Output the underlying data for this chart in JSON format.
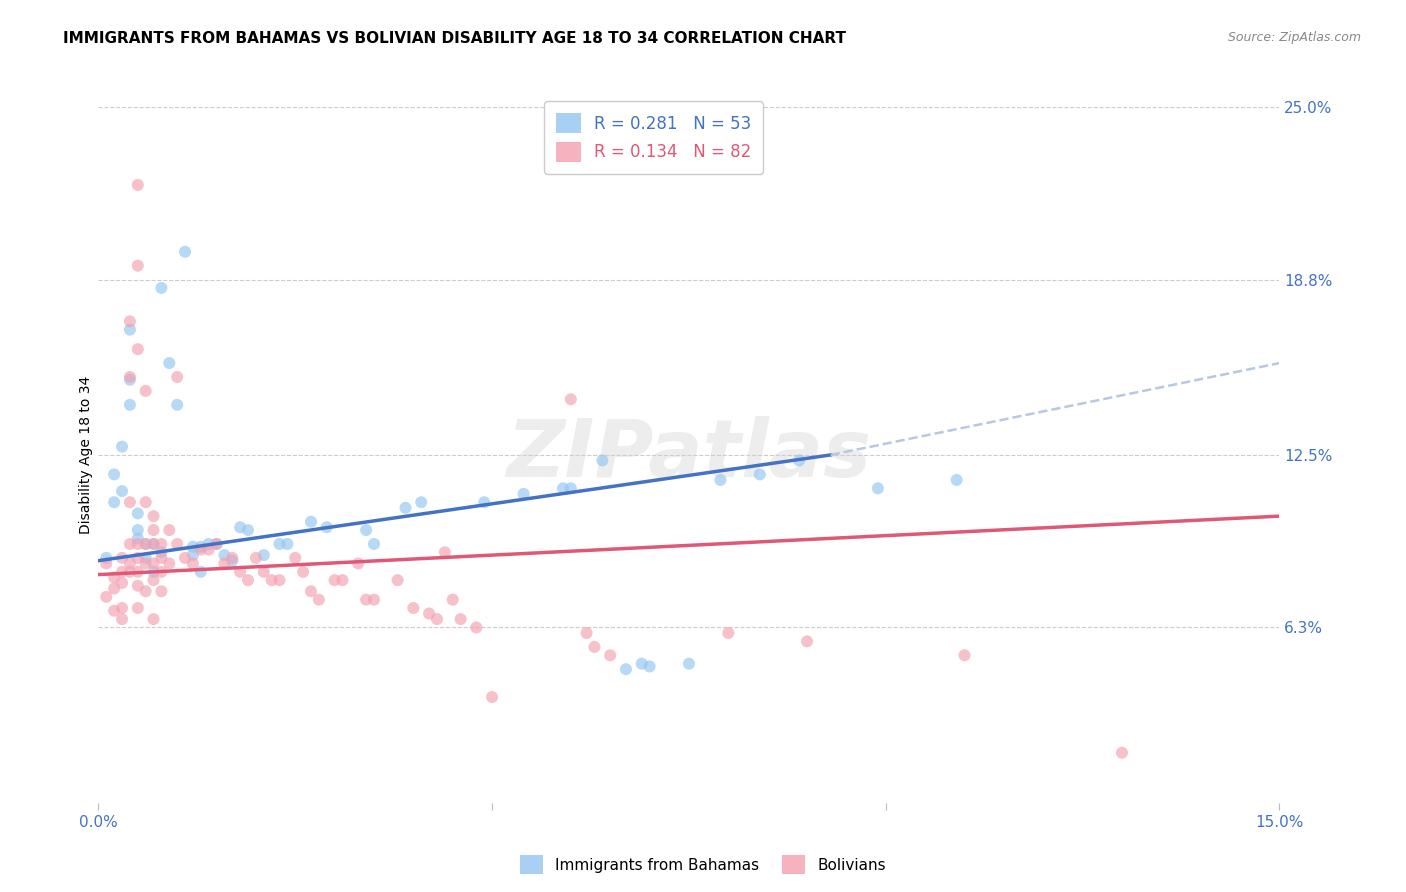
{
  "title": "IMMIGRANTS FROM BAHAMAS VS BOLIVIAN DISABILITY AGE 18 TO 34 CORRELATION CHART",
  "source": "Source: ZipAtlas.com",
  "ylabel_label": "Disability Age 18 to 34",
  "xlim": [
    0.0,
    0.15
  ],
  "ylim": [
    0.0,
    0.25
  ],
  "xtick_vals": [
    0.0,
    0.05,
    0.1,
    0.15
  ],
  "xtick_labels": [
    "0.0%",
    "",
    "",
    "15.0%"
  ],
  "ytick_vals_right": [
    0.25,
    0.188,
    0.125,
    0.063
  ],
  "ytick_labels_right": [
    "25.0%",
    "18.8%",
    "12.5%",
    "6.3%"
  ],
  "legend_r1": "R = 0.281",
  "legend_n1": "N = 53",
  "legend_r2": "R = 0.134",
  "legend_n2": "N = 82",
  "legend_label1": "Immigrants from Bahamas",
  "legend_label2": "Bolivians",
  "color_blue": "#92C5F0",
  "color_pink": "#F4A0B0",
  "color_blue_line": "#4472C4",
  "color_pink_line": "#E05878",
  "color_dashed": "#B8C8E0",
  "watermark": "ZIPatlas",
  "blue_points": [
    [
      0.001,
      0.088
    ],
    [
      0.002,
      0.118
    ],
    [
      0.002,
      0.108
    ],
    [
      0.003,
      0.128
    ],
    [
      0.003,
      0.112
    ],
    [
      0.004,
      0.17
    ],
    [
      0.004,
      0.152
    ],
    [
      0.004,
      0.143
    ],
    [
      0.005,
      0.098
    ],
    [
      0.005,
      0.095
    ],
    [
      0.005,
      0.104
    ],
    [
      0.006,
      0.093
    ],
    [
      0.006,
      0.088
    ],
    [
      0.007,
      0.093
    ],
    [
      0.007,
      0.083
    ],
    [
      0.008,
      0.09
    ],
    [
      0.008,
      0.185
    ],
    [
      0.009,
      0.158
    ],
    [
      0.01,
      0.143
    ],
    [
      0.011,
      0.198
    ],
    [
      0.012,
      0.092
    ],
    [
      0.012,
      0.089
    ],
    [
      0.013,
      0.092
    ],
    [
      0.013,
      0.083
    ],
    [
      0.014,
      0.093
    ],
    [
      0.015,
      0.093
    ],
    [
      0.016,
      0.089
    ],
    [
      0.017,
      0.087
    ],
    [
      0.018,
      0.099
    ],
    [
      0.019,
      0.098
    ],
    [
      0.021,
      0.089
    ],
    [
      0.023,
      0.093
    ],
    [
      0.024,
      0.093
    ],
    [
      0.027,
      0.101
    ],
    [
      0.029,
      0.099
    ],
    [
      0.034,
      0.098
    ],
    [
      0.035,
      0.093
    ],
    [
      0.039,
      0.106
    ],
    [
      0.041,
      0.108
    ],
    [
      0.049,
      0.108
    ],
    [
      0.054,
      0.111
    ],
    [
      0.059,
      0.113
    ],
    [
      0.064,
      0.123
    ],
    [
      0.067,
      0.048
    ],
    [
      0.069,
      0.05
    ],
    [
      0.07,
      0.049
    ],
    [
      0.079,
      0.116
    ],
    [
      0.084,
      0.118
    ],
    [
      0.089,
      0.123
    ],
    [
      0.099,
      0.113
    ],
    [
      0.109,
      0.116
    ],
    [
      0.06,
      0.113
    ],
    [
      0.075,
      0.05
    ]
  ],
  "pink_points": [
    [
      0.001,
      0.086
    ],
    [
      0.001,
      0.074
    ],
    [
      0.002,
      0.081
    ],
    [
      0.002,
      0.077
    ],
    [
      0.002,
      0.069
    ],
    [
      0.003,
      0.088
    ],
    [
      0.003,
      0.083
    ],
    [
      0.003,
      0.079
    ],
    [
      0.003,
      0.07
    ],
    [
      0.003,
      0.066
    ],
    [
      0.004,
      0.173
    ],
    [
      0.004,
      0.153
    ],
    [
      0.004,
      0.108
    ],
    [
      0.004,
      0.093
    ],
    [
      0.004,
      0.086
    ],
    [
      0.004,
      0.083
    ],
    [
      0.005,
      0.222
    ],
    [
      0.005,
      0.193
    ],
    [
      0.005,
      0.163
    ],
    [
      0.005,
      0.093
    ],
    [
      0.005,
      0.088
    ],
    [
      0.005,
      0.083
    ],
    [
      0.005,
      0.078
    ],
    [
      0.005,
      0.07
    ],
    [
      0.006,
      0.148
    ],
    [
      0.006,
      0.108
    ],
    [
      0.006,
      0.093
    ],
    [
      0.006,
      0.086
    ],
    [
      0.006,
      0.076
    ],
    [
      0.007,
      0.103
    ],
    [
      0.007,
      0.098
    ],
    [
      0.007,
      0.093
    ],
    [
      0.007,
      0.086
    ],
    [
      0.007,
      0.08
    ],
    [
      0.007,
      0.066
    ],
    [
      0.008,
      0.093
    ],
    [
      0.008,
      0.088
    ],
    [
      0.008,
      0.083
    ],
    [
      0.008,
      0.076
    ],
    [
      0.009,
      0.098
    ],
    [
      0.009,
      0.086
    ],
    [
      0.01,
      0.153
    ],
    [
      0.01,
      0.093
    ],
    [
      0.011,
      0.088
    ],
    [
      0.012,
      0.086
    ],
    [
      0.013,
      0.091
    ],
    [
      0.014,
      0.091
    ],
    [
      0.015,
      0.093
    ],
    [
      0.016,
      0.086
    ],
    [
      0.017,
      0.088
    ],
    [
      0.018,
      0.083
    ],
    [
      0.019,
      0.08
    ],
    [
      0.02,
      0.088
    ],
    [
      0.021,
      0.083
    ],
    [
      0.022,
      0.08
    ],
    [
      0.023,
      0.08
    ],
    [
      0.025,
      0.088
    ],
    [
      0.026,
      0.083
    ],
    [
      0.027,
      0.076
    ],
    [
      0.028,
      0.073
    ],
    [
      0.03,
      0.08
    ],
    [
      0.031,
      0.08
    ],
    [
      0.033,
      0.086
    ],
    [
      0.034,
      0.073
    ],
    [
      0.035,
      0.073
    ],
    [
      0.038,
      0.08
    ],
    [
      0.04,
      0.07
    ],
    [
      0.042,
      0.068
    ],
    [
      0.043,
      0.066
    ],
    [
      0.044,
      0.09
    ],
    [
      0.045,
      0.073
    ],
    [
      0.046,
      0.066
    ],
    [
      0.048,
      0.063
    ],
    [
      0.05,
      0.038
    ],
    [
      0.06,
      0.145
    ],
    [
      0.062,
      0.061
    ],
    [
      0.063,
      0.056
    ],
    [
      0.065,
      0.053
    ],
    [
      0.08,
      0.061
    ],
    [
      0.09,
      0.058
    ],
    [
      0.11,
      0.053
    ],
    [
      0.13,
      0.018
    ]
  ],
  "blue_line": [
    [
      0.0,
      0.087
    ],
    [
      0.093,
      0.125
    ]
  ],
  "pink_line": [
    [
      0.0,
      0.082
    ],
    [
      0.15,
      0.103
    ]
  ],
  "dashed_line": [
    [
      0.093,
      0.125
    ],
    [
      0.15,
      0.158
    ]
  ],
  "background_color": "#FFFFFF",
  "grid_color": "#CCCCCC",
  "title_fontsize": 11,
  "axis_label_fontsize": 10,
  "tick_fontsize": 11,
  "marker_size": 75
}
